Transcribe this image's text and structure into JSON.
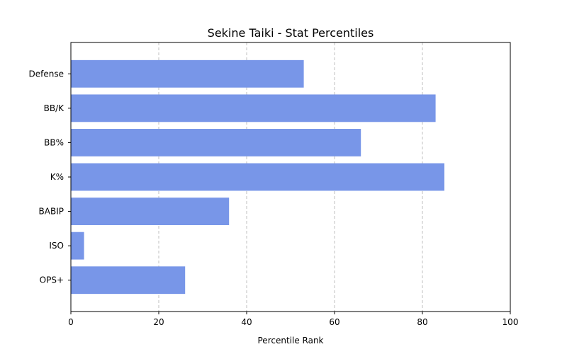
{
  "chart_data": {
    "type": "bar",
    "orientation": "horizontal",
    "title": "Sekine Taiki - Stat Percentiles",
    "xlabel": "Percentile Rank",
    "ylabel": "",
    "xlim": [
      0,
      100
    ],
    "xticks": [
      0,
      20,
      40,
      60,
      80,
      100
    ],
    "grid": "x-dashed",
    "bar_color": "#7896e8",
    "categories": [
      "OPS+",
      "ISO",
      "BABIP",
      "K%",
      "BB%",
      "BB/K",
      "Defense"
    ],
    "values": [
      26,
      3,
      36,
      85,
      66,
      83,
      53
    ]
  }
}
